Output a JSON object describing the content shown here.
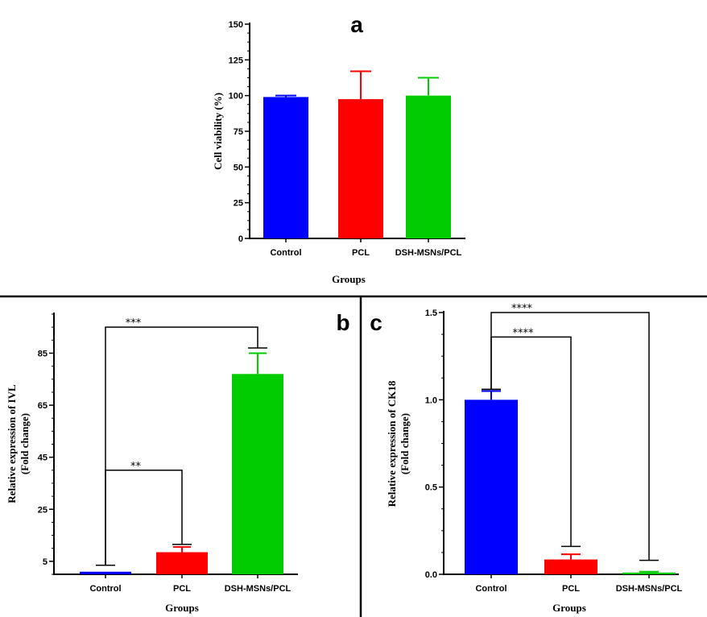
{
  "colors": {
    "control": "#0000ff",
    "pcl": "#ff0000",
    "dsh": "#00cc00",
    "ink": "#000000"
  },
  "chart_data": [
    {
      "type": "bar",
      "panel_label": "a",
      "title": "",
      "categories": [
        "Control",
        "PCL",
        "DSH-MSNs/PCL"
      ],
      "values": [
        99,
        97.5,
        100
      ],
      "errors": [
        1,
        19.5,
        12.5
      ],
      "xlabel": "Groups",
      "ylabel": "Cell viability (%)",
      "ylim": [
        0,
        150
      ],
      "yticks": [
        0,
        25,
        50,
        75,
        100,
        125,
        150
      ],
      "ytick_labels": [
        "0",
        "25",
        "50",
        "75",
        "100",
        "125",
        "150"
      ],
      "significance": []
    },
    {
      "type": "bar",
      "panel_label": "b",
      "title": "",
      "categories": [
        "Control",
        "PCL",
        "DSH-MSNs/PCL"
      ],
      "values": [
        1,
        8.5,
        77
      ],
      "errors": [
        0,
        2,
        8
      ],
      "xlabel": "Groups",
      "ylabel": "Relative expression of IVL",
      "ylabel2": "(Fold change)",
      "ylim": [
        0,
        100
      ],
      "yticks": [
        5,
        25,
        45,
        65,
        85
      ],
      "ytick_labels": [
        "5",
        "25",
        "45",
        "65",
        "85"
      ],
      "significance": [
        {
          "from": 0,
          "to": 1,
          "label": "**",
          "y": 40,
          "drops": [
            3.5,
            11.5
          ]
        },
        {
          "from": 0,
          "to": 2,
          "label": "***",
          "y": 95,
          "drops": [
            3.5,
            87
          ]
        }
      ]
    },
    {
      "type": "bar",
      "panel_label": "c",
      "title": "",
      "categories": [
        "Control",
        "PCL",
        "DSH-MSNs/PCL"
      ],
      "values": [
        1.0,
        0.085,
        0.01
      ],
      "errors": [
        0.05,
        0.03,
        0.005
      ],
      "xlabel": "Groups",
      "ylabel": "Relative expression of CK18",
      "ylabel2": "(Fold change)",
      "ylim": [
        0,
        1.5
      ],
      "yticks": [
        0,
        0.5,
        1.0,
        1.5
      ],
      "ytick_labels": [
        "0.0",
        "0.5",
        "1.0",
        "1.5"
      ],
      "significance": [
        {
          "from": 0,
          "to": 1,
          "label": "****",
          "y": 1.36,
          "drops": [
            1.06,
            0.16
          ]
        },
        {
          "from": 0,
          "to": 2,
          "label": "****",
          "y": 1.5,
          "drops": [
            1.06,
            0.08
          ]
        }
      ]
    }
  ]
}
